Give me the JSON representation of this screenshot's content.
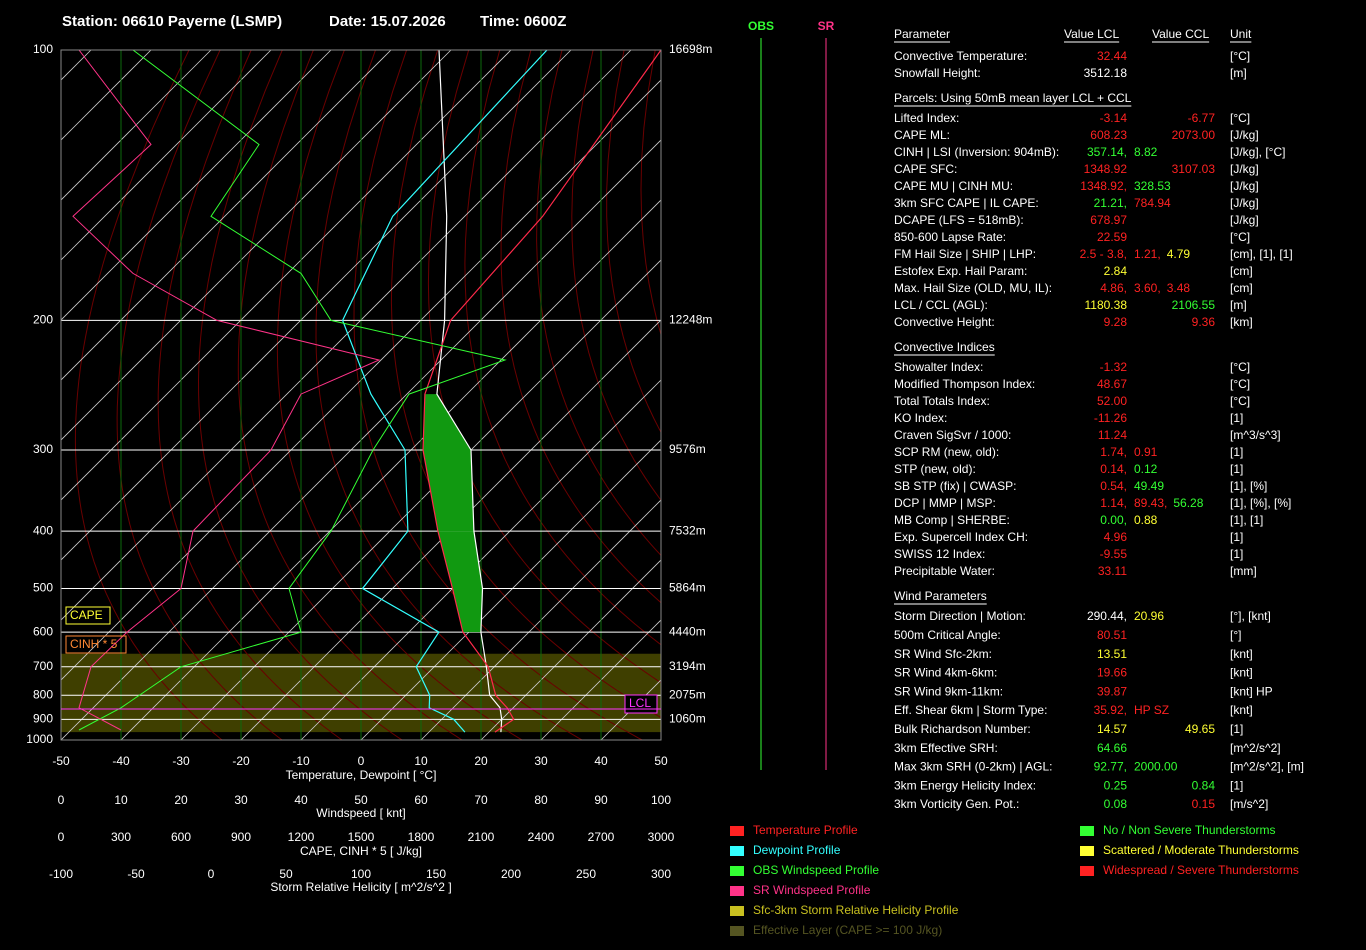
{
  "header": {
    "station": "Station: 06610 Payerne (LSMP)",
    "date": "Date: 15.07.2026",
    "time": "Time: 0600Z"
  },
  "chart_data": {
    "type": "skewt",
    "ylim": [
      100,
      1000
    ],
    "yticks": [
      100,
      200,
      300,
      400,
      500,
      600,
      700,
      800,
      900,
      1000
    ],
    "height_labels": [
      "16698m",
      "12248m",
      "9576m",
      "7532m",
      "5864m",
      "4440m",
      "3194m",
      "2075m",
      "1060m"
    ],
    "xlim": [
      -50,
      50
    ],
    "xticks": [
      -50,
      -40,
      -30,
      -20,
      -10,
      0,
      10,
      20,
      30,
      40,
      50
    ],
    "xlabel": "Temperature, Dewpoint [ °C]",
    "levels": [
      960,
      900,
      850,
      800,
      700,
      600,
      500,
      400,
      300,
      250,
      200,
      150,
      100
    ],
    "temperature": [
      21,
      22,
      19,
      15,
      9,
      -1,
      -10,
      -22,
      -38,
      -47,
      -55,
      -57,
      -65
    ],
    "dewpoint": [
      16,
      12,
      6,
      4,
      -3,
      -5,
      -25,
      -27,
      -41,
      -56,
      -73,
      -82,
      -84
    ],
    "parcel": [
      22,
      20,
      17.8,
      14,
      8.7,
      2,
      -5,
      -16,
      -30,
      -45,
      -56,
      -73,
      -102
    ],
    "temperature_color": "#ff2a4a",
    "dewpoint_color": "#33ffff",
    "parcel_color": "#ffffff",
    "cape_color": "#119911",
    "wind_axis": {
      "label": "Windspeed [ knt]",
      "lim": [
        0,
        100
      ],
      "ticks": [
        0,
        10,
        20,
        30,
        40,
        50,
        60,
        70,
        80,
        90,
        100
      ]
    },
    "wind_levels": [
      100,
      125,
      150,
      175,
      200,
      225,
      250,
      300,
      400,
      500,
      600,
      700,
      850,
      950
    ],
    "obs_wind": [
      12,
      33,
      25,
      40,
      45,
      74,
      58,
      52,
      45,
      38,
      40,
      20,
      10,
      3
    ],
    "sr_wind": [
      3,
      15,
      2,
      12,
      26,
      53,
      40,
      35,
      22,
      20,
      11,
      5,
      3,
      10
    ],
    "obs_color": "#33ff33",
    "sr_color": "#ff3388",
    "cape_axis": {
      "label": "CAPE, CINH * 5 [ J/kg]",
      "lim": [
        0,
        3000
      ],
      "ticks": [
        0,
        300,
        600,
        900,
        1200,
        1500,
        1800,
        2100,
        2400,
        2700,
        3000
      ]
    },
    "srh_axis": {
      "label": "Storm Relative Helicity [ m^2/s^2 ]",
      "lim": [
        -100,
        300
      ],
      "ticks": [
        -100,
        -50,
        0,
        50,
        100,
        150,
        200,
        250,
        300
      ]
    },
    "effective_layer": [
      960,
      660
    ],
    "lcl_pressure": 855,
    "annotations": {
      "cape": "CAPE",
      "cinh": "CINH * 5",
      "lcl": "LCL"
    }
  },
  "wind_columns": {
    "obs": "OBS",
    "sr": "SR"
  },
  "table": {
    "headers": [
      "Parameter",
      "Value LCL",
      "Value CCL",
      "Unit"
    ],
    "groups": [
      {
        "rows": [
          {
            "name": "Convective Temperature:",
            "lcl": [
              {
                "text": "32.44",
                "color": "#ff2222"
              }
            ],
            "unit": "[°C]"
          },
          {
            "name": "Snowfall Height:",
            "lcl": [
              {
                "text": "3512.18",
                "color": "#ffffff"
              }
            ],
            "unit": "[m]"
          }
        ]
      },
      {
        "title": "Parcels: Using 50mB mean layer LCL + CCL",
        "rows": [
          {
            "name": "Lifted Index:",
            "lcl": [
              {
                "text": "-3.14",
                "color": "#ff2222"
              }
            ],
            "ccl": {
              "text": "-6.77",
              "color": "#ff2222"
            },
            "unit": "[°C]"
          },
          {
            "name": "CAPE ML:",
            "lcl": [
              {
                "text": "608.23",
                "color": "#ff2222"
              }
            ],
            "ccl": {
              "text": "2073.00",
              "color": "#ff2222"
            },
            "unit": "[J/kg]"
          },
          {
            "name": "CINH | LSI (Inversion: 904mB):",
            "lcl": [
              {
                "text": "357.14,",
                "color": "#33ff33"
              },
              {
                "text": "8.82",
                "color": "#33ff33"
              }
            ],
            "unit": "[J/kg], [°C]"
          },
          {
            "name": "CAPE SFC:",
            "lcl": [
              {
                "text": "1348.92",
                "color": "#ff2222"
              }
            ],
            "ccl": {
              "text": "3107.03",
              "color": "#ff2222"
            },
            "unit": "[J/kg]"
          },
          {
            "name": "CAPE MU | CINH MU:",
            "lcl": [
              {
                "text": "1348.92,",
                "color": "#ff2222"
              },
              {
                "text": "328.53",
                "color": "#33ff33"
              }
            ],
            "unit": "[J/kg]"
          },
          {
            "name": "3km SFC CAPE | IL CAPE:",
            "lcl": [
              {
                "text": "21.21,",
                "color": "#33ff33"
              },
              {
                "text": "784.94",
                "color": "#ff2222"
              }
            ],
            "unit": "[J/kg]"
          },
          {
            "name": "DCAPE (LFS = 518mB):",
            "lcl": [
              {
                "text": "678.97",
                "color": "#ff2222"
              }
            ],
            "unit": "[J/kg]"
          },
          {
            "name": "850-600 Lapse Rate:",
            "lcl": [
              {
                "text": "22.59",
                "color": "#ff2222"
              }
            ],
            "unit": "[°C]"
          },
          {
            "name": "FM Hail Size | SHIP | LHP:",
            "lcl": [
              {
                "text": "2.5 - 3.8,",
                "color": "#ff2222"
              },
              {
                "text": "1.21,",
                "color": "#ff2222"
              },
              {
                "text": "4.79",
                "color": "#ffff33"
              }
            ],
            "unit": "[cm], [1], [1]"
          },
          {
            "name": "Estofex Exp. Hail Param:",
            "lcl": [
              {
                "text": "2.84",
                "color": "#ffff33"
              }
            ],
            "unit": "[cm]"
          },
          {
            "name": "Max. Hail Size (OLD, MU, IL):",
            "lcl": [
              {
                "text": "4.86,",
                "color": "#ff2222"
              },
              {
                "text": "3.60,",
                "color": "#ff2222"
              },
              {
                "text": "3.48",
                "color": "#ff2222"
              }
            ],
            "unit": "[cm]"
          },
          {
            "name": "LCL / CCL (AGL):",
            "lcl": [
              {
                "text": "1180.38",
                "color": "#ffff33"
              }
            ],
            "ccl": {
              "text": "2106.55",
              "color": "#33ff33"
            },
            "unit": "[m]"
          },
          {
            "name": "Convective Height:",
            "lcl": [
              {
                "text": "9.28",
                "color": "#ff2222"
              }
            ],
            "ccl": {
              "text": "9.36",
              "color": "#ff2222"
            },
            "unit": "[km]"
          }
        ]
      },
      {
        "title": "Convective Indices",
        "rows": [
          {
            "name": "Showalter Index:",
            "lcl": [
              {
                "text": "-1.32",
                "color": "#ff2222"
              }
            ],
            "unit": "[°C]"
          },
          {
            "name": "Modified Thompson Index:",
            "lcl": [
              {
                "text": "48.67",
                "color": "#ff2222"
              }
            ],
            "unit": "[°C]"
          },
          {
            "name": "Total Totals Index:",
            "lcl": [
              {
                "text": "52.00",
                "color": "#ff2222"
              }
            ],
            "unit": "[°C]"
          },
          {
            "name": "KO Index:",
            "lcl": [
              {
                "text": "-11.26",
                "color": "#ff2222"
              }
            ],
            "unit": "[1]"
          },
          {
            "name": "Craven SigSvr / 1000:",
            "lcl": [
              {
                "text": "11.24",
                "color": "#ff2222"
              }
            ],
            "unit": "[m^3/s^3]"
          },
          {
            "name": "SCP RM (new, old):",
            "lcl": [
              {
                "text": "1.74,",
                "color": "#ff2222"
              },
              {
                "text": "0.91",
                "color": "#ff2222"
              }
            ],
            "unit": "[1]"
          },
          {
            "name": "STP (new, old):",
            "lcl": [
              {
                "text": "0.14,",
                "color": "#ff2222"
              },
              {
                "text": "0.12",
                "color": "#33ff33"
              }
            ],
            "unit": "[1]"
          },
          {
            "name": "SB STP (fix) | CWASP:",
            "lcl": [
              {
                "text": "0.54,",
                "color": "#ff2222"
              },
              {
                "text": "49.49",
                "color": "#33ff33"
              }
            ],
            "unit": "[1], [%]"
          },
          {
            "name": "DCP | MMP | MSP:",
            "lcl": [
              {
                "text": "1.14,",
                "color": "#ff2222"
              },
              {
                "text": "89.43,",
                "color": "#ff2222"
              },
              {
                "text": "56.28",
                "color": "#33ff33"
              }
            ],
            "unit": "[1], [%], [%]"
          },
          {
            "name": "MB Comp | SHERBE:",
            "lcl": [
              {
                "text": "0.00,",
                "color": "#33ff33"
              },
              {
                "text": "0.88",
                "color": "#ffff33"
              }
            ],
            "unit": "[1], [1]"
          },
          {
            "name": "Exp. Supercell Index CH:",
            "lcl": [
              {
                "text": "4.96",
                "color": "#ff2222"
              }
            ],
            "unit": "[1]"
          },
          {
            "name": "SWISS 12 Index:",
            "lcl": [
              {
                "text": "-9.55",
                "color": "#ff2222"
              }
            ],
            "unit": "[1]"
          },
          {
            "name": "Precipitable Water:",
            "lcl": [
              {
                "text": "33.11",
                "color": "#ff2222"
              }
            ],
            "unit": "[mm]"
          }
        ]
      },
      {
        "title": "Wind Parameters",
        "rows": [
          {
            "name": "Storm Direction | Motion:",
            "lcl": [
              {
                "text": "290.44,",
                "color": "#ffffff"
              },
              {
                "text": "20.96",
                "color": "#ffff33"
              }
            ],
            "unit": "[°], [knt]"
          },
          {
            "name": "500m Critical Angle:",
            "lcl": [
              {
                "text": "80.51",
                "color": "#ff2222"
              }
            ],
            "unit": "[°]"
          },
          {
            "name": "SR Wind Sfc-2km:",
            "lcl": [
              {
                "text": "13.51",
                "color": "#ffff33"
              }
            ],
            "unit": "[knt]"
          },
          {
            "name": "SR Wind 4km-6km:",
            "lcl": [
              {
                "text": "19.66",
                "color": "#ff2222"
              }
            ],
            "unit": "[knt]"
          },
          {
            "name": "SR Wind 9km-11km:",
            "lcl": [
              {
                "text": "39.87",
                "color": "#ff2222"
              }
            ],
            "unit": "[knt] HP"
          },
          {
            "name": "Eff. Shear 6km | Storm Type:",
            "lcl": [
              {
                "text": "35.92,",
                "color": "#ff2222"
              },
              {
                "text": "HP SZ",
                "color": "#ff2222"
              }
            ],
            "unit": "[knt]"
          },
          {
            "name": "Bulk Richardson Number:",
            "lcl": [
              {
                "text": "14.57",
                "color": "#ffff33"
              }
            ],
            "ccl": {
              "text": "49.65",
              "color": "#ffff33"
            },
            "unit": "[1]"
          },
          {
            "name": "3km Effective SRH:",
            "lcl": [
              {
                "text": "64.66",
                "color": "#33ff33"
              }
            ],
            "unit": "[m^2/s^2]"
          },
          {
            "name": "Max 3km SRH (0-2km) | AGL:",
            "lcl": [
              {
                "text": "92.77,",
                "color": "#33ff33"
              },
              {
                "text": "2000.00",
                "color": "#33ff33"
              }
            ],
            "unit": "[m^2/s^2], [m]"
          },
          {
            "name": "3km Energy Helicity Index:",
            "lcl": [
              {
                "text": "0.25",
                "color": "#33ff33"
              }
            ],
            "ccl": {
              "text": "0.84",
              "color": "#33ff33"
            },
            "unit": "[1]"
          },
          {
            "name": "3km Vorticity Gen. Pot.:",
            "lcl": [
              {
                "text": "0.08",
                "color": "#33ff33"
              }
            ],
            "ccl": {
              "text": "0.15",
              "color": "#ff2222"
            },
            "unit": "[m/s^2]"
          }
        ]
      }
    ]
  },
  "legend": {
    "left": [
      {
        "text": "Temperature Profile",
        "color": "#ff2222"
      },
      {
        "text": "Dewpoint Profile",
        "color": "#33ffff"
      },
      {
        "text": "OBS Windspeed Profile",
        "color": "#33ff33"
      },
      {
        "text": "SR Windspeed Profile",
        "color": "#ff3388"
      },
      {
        "text": "Sfc-3km Storm Relative Helicity Profile",
        "color": "#c8c020"
      },
      {
        "text": "Effective Layer (CAPE >= 100 J/kg)",
        "color": "#555522"
      }
    ],
    "right": [
      {
        "text": "No / Non Severe Thunderstorms",
        "color": "#33ff33"
      },
      {
        "text": "Scattered / Moderate Thunderstorms",
        "color": "#ffff33"
      },
      {
        "text": "Widespread / Severe Thunderstorms",
        "color": "#ff2222"
      }
    ]
  }
}
